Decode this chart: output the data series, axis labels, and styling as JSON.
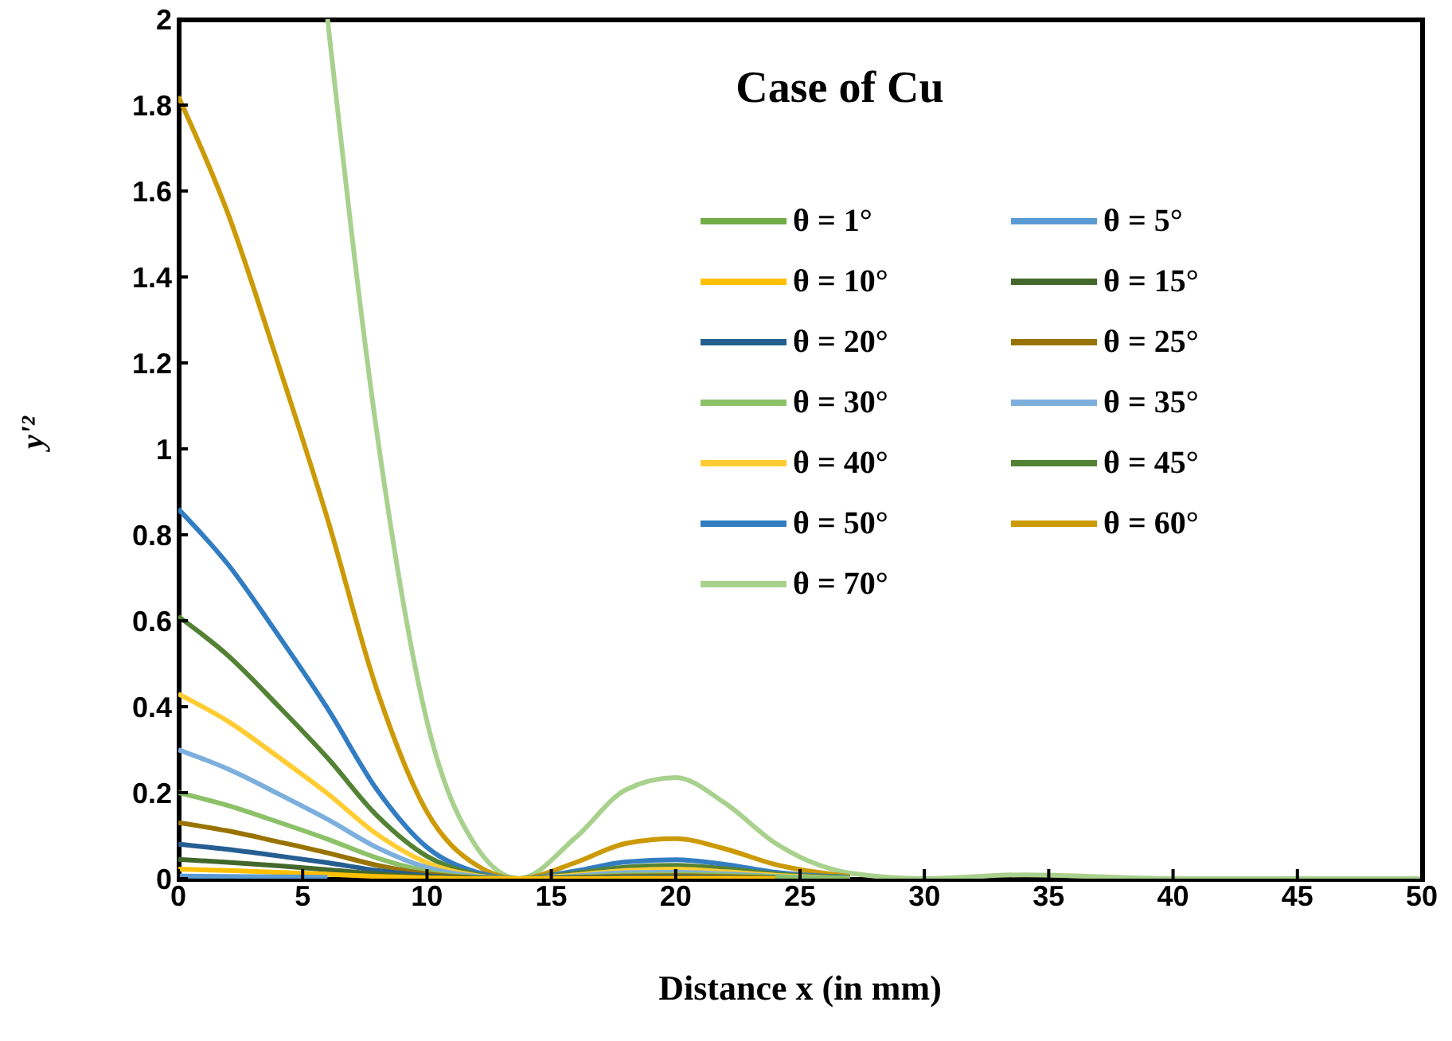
{
  "chart_data": {
    "type": "line",
    "title": "Case of Cu",
    "xlabel": "Distance x (in mm)",
    "ylabel": "y'²",
    "x": [
      0,
      2,
      4,
      6,
      8,
      10,
      12,
      13.7,
      16,
      18,
      20,
      22,
      24,
      27,
      30,
      34,
      40,
      50
    ],
    "xlim": [
      0,
      50
    ],
    "xticks": [
      0,
      5,
      10,
      15,
      20,
      25,
      30,
      35,
      40,
      45,
      50
    ],
    "ylim": [
      0,
      2
    ],
    "yticks": [
      0,
      0.2,
      0.4,
      0.6,
      0.8,
      1,
      1.2,
      1.4,
      1.6,
      1.8,
      2
    ],
    "grid": false,
    "legend": "right",
    "marker": "none",
    "line_style": "solid",
    "series": [
      {
        "name": "θ = 1°",
        "color": "#70ad47",
        "values": [
          null,
          null,
          null,
          null,
          null,
          null,
          null,
          null,
          null,
          null,
          null,
          null,
          null,
          null,
          null,
          null,
          null,
          null
        ]
      },
      {
        "name": "θ = 5°",
        "color": "#5b9bd5",
        "values": [
          0.006,
          0.005,
          0.004,
          0.003,
          null,
          null,
          null,
          null,
          null,
          null,
          null,
          null,
          null,
          null,
          null,
          null,
          null,
          null
        ]
      },
      {
        "name": "θ = 10°",
        "color": "#ffc000",
        "values": [
          0.022,
          0.019,
          0.015,
          0.01,
          0.005,
          0.002,
          0,
          0,
          0,
          0.001,
          0.001,
          0.001,
          0,
          null,
          null,
          null,
          null,
          null
        ]
      },
      {
        "name": "θ = 15°",
        "color": "#43682b",
        "values": [
          0.045,
          0.038,
          0.03,
          0.021,
          0.011,
          0.004,
          0.001,
          0,
          0.001,
          0.002,
          0.002,
          0.002,
          0.001,
          null,
          null,
          null,
          null,
          null
        ]
      },
      {
        "name": "θ = 20°",
        "color": "#255e91",
        "values": [
          0.08,
          0.068,
          0.053,
          0.037,
          0.019,
          0.007,
          0.001,
          0,
          0.002,
          0.004,
          0.004,
          0.003,
          0.001,
          null,
          null,
          null,
          null,
          null
        ]
      },
      {
        "name": "θ = 25°",
        "color": "#997300",
        "values": [
          0.13,
          0.111,
          0.086,
          0.06,
          0.031,
          0.011,
          0.002,
          0,
          0.003,
          0.006,
          0.007,
          0.005,
          0.002,
          null,
          null,
          null,
          null,
          null
        ]
      },
      {
        "name": "θ = 30°",
        "color": "#8cc168",
        "values": [
          0.2,
          0.17,
          0.132,
          0.092,
          0.048,
          0.017,
          0.003,
          0,
          0.004,
          0.009,
          0.01,
          0.008,
          0.004,
          0.001,
          null,
          null,
          null,
          null
        ]
      },
      {
        "name": "θ = 35°",
        "color": "#7cafdd",
        "values": [
          0.3,
          0.255,
          0.198,
          0.138,
          0.072,
          0.026,
          0.005,
          0,
          0.006,
          0.014,
          0.015,
          0.011,
          0.005,
          0.001,
          null,
          null,
          null,
          null
        ]
      },
      {
        "name": "θ = 40°",
        "color": "#ffcd33",
        "values": [
          0.43,
          0.366,
          0.284,
          0.198,
          0.103,
          0.037,
          0.007,
          0,
          0.009,
          0.019,
          0.022,
          0.016,
          0.008,
          0.001,
          null,
          null,
          null,
          null
        ]
      },
      {
        "name": "θ = 45°",
        "color": "#548235",
        "values": [
          0.61,
          0.519,
          0.403,
          0.281,
          0.146,
          0.052,
          0.01,
          0,
          0.013,
          0.027,
          0.031,
          0.023,
          0.011,
          0.002,
          null,
          null,
          null,
          null
        ]
      },
      {
        "name": "θ = 50°",
        "color": "#327dc2",
        "values": [
          0.86,
          0.731,
          0.568,
          0.396,
          0.206,
          0.073,
          0.015,
          0,
          0.018,
          0.039,
          0.044,
          0.033,
          0.015,
          0.003,
          null,
          null,
          null,
          null
        ]
      },
      {
        "name": "θ = 60°",
        "color": "#cc9a06",
        "values": [
          1.82,
          1.547,
          1.201,
          0.837,
          0.437,
          0.155,
          0.031,
          0,
          0.038,
          0.082,
          0.093,
          0.069,
          0.033,
          0.005,
          null,
          null,
          null,
          null
        ]
      },
      {
        "name": "θ = 70°",
        "color": "#a9d18e",
        "values": [
          null,
          null,
          null,
          2,
          1.032,
          0.366,
          0.073,
          0,
          0.097,
          0.207,
          0.235,
          0.175,
          0.083,
          0.013,
          0,
          0.009,
          0,
          0
        ]
      }
    ]
  }
}
